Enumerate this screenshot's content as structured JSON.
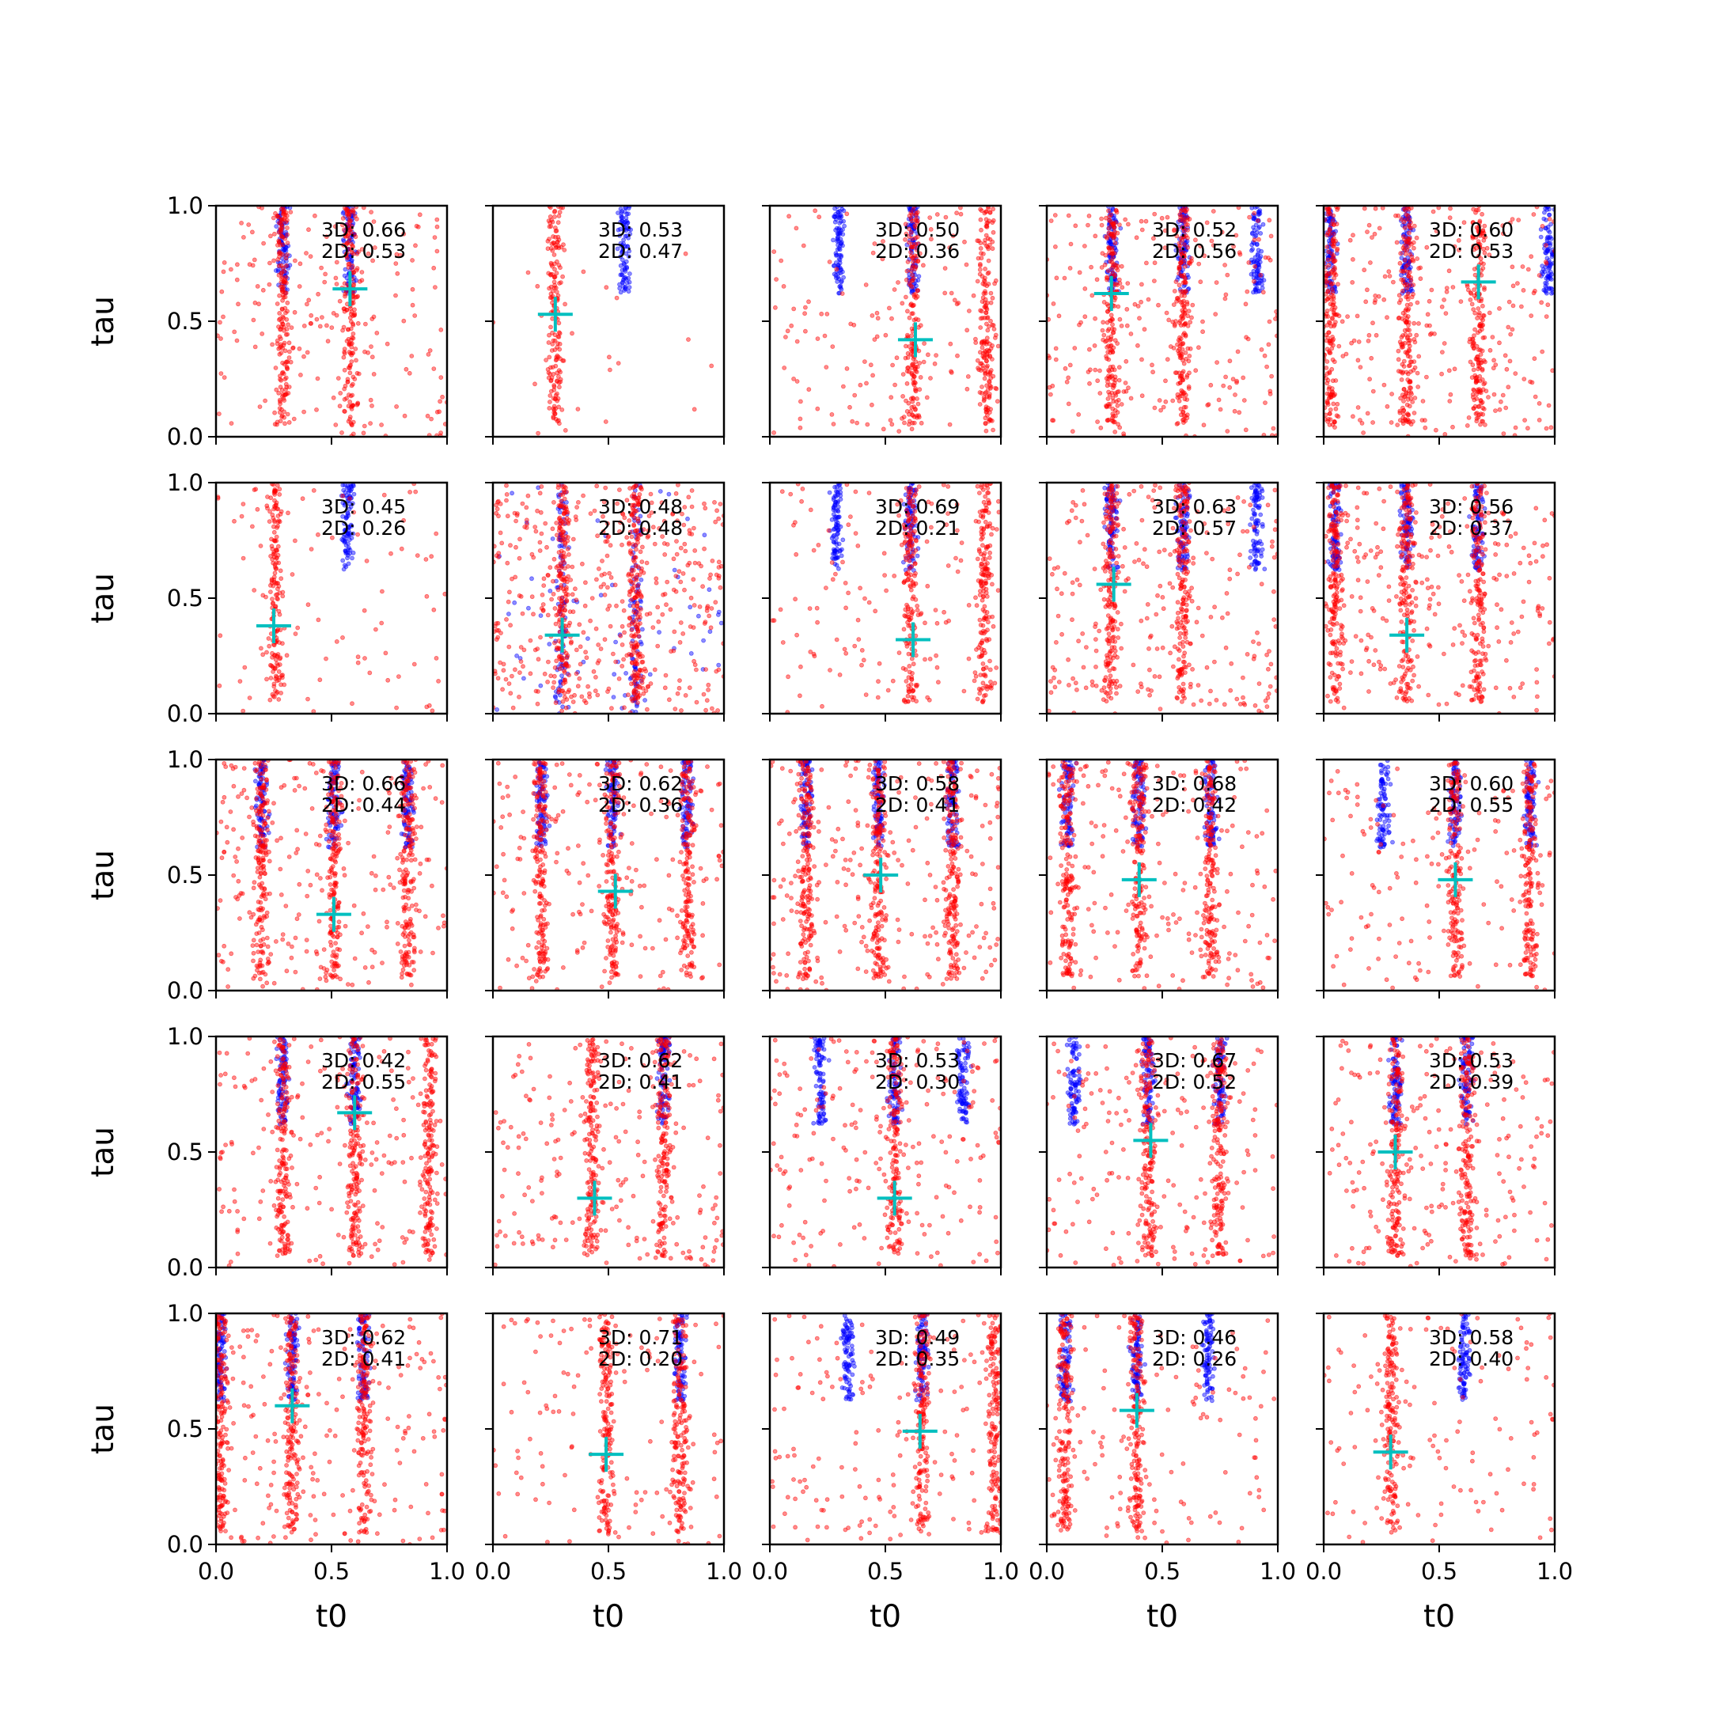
{
  "chart_data": {
    "type": "scatter",
    "layout": "5x5 grid of scatter subplots",
    "xlabel": "t0",
    "ylabel": "tau",
    "xlim": [
      0.0,
      1.0
    ],
    "ylim": [
      0.0,
      1.0
    ],
    "x_ticks": [
      "0.0",
      "0.5",
      "1.0"
    ],
    "y_ticks": [
      "0.0",
      "0.5",
      "1.0"
    ],
    "series": [
      {
        "color": "#ff0000",
        "marker": "small dots, alpha 0.4"
      },
      {
        "color": "#0000ff",
        "marker": "small dots, alpha 0.4"
      },
      {
        "color": "#00bfbf",
        "marker": "+ (large)"
      }
    ],
    "grid": false,
    "legend": "none",
    "panels": [
      {
        "a3d": "3D: 0.66",
        "a2d": "2D: 0.53",
        "red": [
          0.29,
          0.58
        ],
        "blue": [
          0.29,
          0.58
        ],
        "diffuse": 0.45,
        "bluefull": false,
        "mark": [
          0.58,
          0.64
        ]
      },
      {
        "a3d": "3D: 0.53",
        "a2d": "2D: 0.47",
        "red": [
          0.27
        ],
        "blue": [
          0.57
        ],
        "diffuse": 0.05,
        "bluefull": false,
        "mark": [
          0.27,
          0.53
        ]
      },
      {
        "a3d": "3D: 0.50",
        "a2d": "2D: 0.36",
        "red": [
          0.62,
          0.94
        ],
        "blue": [
          0.3,
          0.62
        ],
        "diffuse": 0.35,
        "bluefull": false,
        "mark": [
          0.63,
          0.42
        ]
      },
      {
        "a3d": "3D: 0.52",
        "a2d": "2D: 0.56",
        "red": [
          0.28,
          0.59
        ],
        "blue": [
          0.28,
          0.59,
          0.91
        ],
        "diffuse": 0.6,
        "bluefull": false,
        "mark": [
          0.28,
          0.62
        ]
      },
      {
        "a3d": "3D: 0.60",
        "a2d": "2D: 0.53",
        "red": [
          0.03,
          0.36,
          0.67
        ],
        "blue": [
          0.03,
          0.36,
          0.97
        ],
        "diffuse": 0.6,
        "bluefull": false,
        "mark": [
          0.67,
          0.67
        ]
      },
      {
        "a3d": "3D: 0.45",
        "a2d": "2D: 0.26",
        "red": [
          0.26
        ],
        "blue": [
          0.57
        ],
        "diffuse": 0.2,
        "bluefull": false,
        "mark": [
          0.25,
          0.38
        ]
      },
      {
        "a3d": "3D: 0.48",
        "a2d": "2D: 0.48",
        "red": [
          0.3,
          0.62
        ],
        "blue": [
          0.3,
          0.62
        ],
        "diffuse": 1.0,
        "bluefull": true,
        "mark": [
          0.3,
          0.34
        ]
      },
      {
        "a3d": "3D: 0.69",
        "a2d": "2D: 0.21",
        "red": [
          0.61,
          0.93
        ],
        "blue": [
          0.29,
          0.61
        ],
        "diffuse": 0.3,
        "bluefull": false,
        "mark": [
          0.62,
          0.32
        ]
      },
      {
        "a3d": "3D: 0.63",
        "a2d": "2D: 0.57",
        "red": [
          0.28,
          0.59
        ],
        "blue": [
          0.28,
          0.59,
          0.91
        ],
        "diffuse": 0.55,
        "bluefull": false,
        "mark": [
          0.29,
          0.56
        ]
      },
      {
        "a3d": "3D: 0.56",
        "a2d": "2D: 0.37",
        "red": [
          0.05,
          0.36,
          0.67
        ],
        "blue": [
          0.05,
          0.36,
          0.67
        ],
        "diffuse": 0.55,
        "bluefull": false,
        "mark": [
          0.36,
          0.34
        ]
      },
      {
        "a3d": "3D: 0.66",
        "a2d": "2D: 0.44",
        "red": [
          0.2,
          0.51,
          0.83
        ],
        "blue": [
          0.2,
          0.51,
          0.83
        ],
        "diffuse": 0.55,
        "bluefull": false,
        "mark": [
          0.51,
          0.33
        ]
      },
      {
        "a3d": "3D: 0.62",
        "a2d": "2D: 0.36",
        "red": [
          0.21,
          0.52,
          0.84
        ],
        "blue": [
          0.21,
          0.52,
          0.84
        ],
        "diffuse": 0.45,
        "bluefull": false,
        "mark": [
          0.53,
          0.43
        ]
      },
      {
        "a3d": "3D: 0.58",
        "a2d": "2D: 0.41",
        "red": [
          0.16,
          0.47,
          0.79
        ],
        "blue": [
          0.16,
          0.47,
          0.79
        ],
        "diffuse": 0.6,
        "bluefull": false,
        "mark": [
          0.48,
          0.5
        ]
      },
      {
        "a3d": "3D: 0.68",
        "a2d": "2D: 0.42",
        "red": [
          0.09,
          0.4,
          0.71
        ],
        "blue": [
          0.09,
          0.4,
          0.71
        ],
        "diffuse": 0.45,
        "bluefull": false,
        "mark": [
          0.4,
          0.48
        ]
      },
      {
        "a3d": "3D: 0.60",
        "a2d": "2D: 0.55",
        "red": [
          0.57,
          0.89
        ],
        "blue": [
          0.26,
          0.57,
          0.89
        ],
        "diffuse": 0.35,
        "bluefull": false,
        "mark": [
          0.57,
          0.48
        ]
      },
      {
        "a3d": "3D: 0.42",
        "a2d": "2D: 0.55",
        "red": [
          0.29,
          0.6,
          0.92
        ],
        "blue": [
          0.29,
          0.6
        ],
        "diffuse": 0.45,
        "bluefull": false,
        "mark": [
          0.6,
          0.67
        ]
      },
      {
        "a3d": "3D: 0.62",
        "a2d": "2D: 0.41",
        "red": [
          0.43,
          0.74
        ],
        "blue": [
          0.74
        ],
        "diffuse": 0.5,
        "bluefull": false,
        "mark": [
          0.44,
          0.3
        ]
      },
      {
        "a3d": "3D: 0.53",
        "a2d": "2D: 0.30",
        "red": [
          0.54
        ],
        "blue": [
          0.22,
          0.54,
          0.84
        ],
        "diffuse": 0.5,
        "bluefull": false,
        "mark": [
          0.54,
          0.3
        ]
      },
      {
        "a3d": "3D: 0.67",
        "a2d": "2D: 0.52",
        "red": [
          0.44,
          0.75
        ],
        "blue": [
          0.12,
          0.44,
          0.75
        ],
        "diffuse": 0.45,
        "bluefull": false,
        "mark": [
          0.45,
          0.55
        ]
      },
      {
        "a3d": "3D: 0.53",
        "a2d": "2D: 0.39",
        "red": [
          0.31,
          0.62
        ],
        "blue": [
          0.31,
          0.62
        ],
        "diffuse": 0.5,
        "bluefull": false,
        "mark": [
          0.31,
          0.5
        ]
      },
      {
        "a3d": "3D: 0.62",
        "a2d": "2D: 0.41",
        "red": [
          0.02,
          0.33,
          0.64
        ],
        "blue": [
          0.02,
          0.33,
          0.64
        ],
        "diffuse": 0.5,
        "bluefull": false,
        "mark": [
          0.33,
          0.6
        ]
      },
      {
        "a3d": "3D: 0.71",
        "a2d": "2D: 0.20",
        "red": [
          0.49,
          0.81
        ],
        "blue": [
          0.81
        ],
        "diffuse": 0.3,
        "bluefull": false,
        "mark": [
          0.49,
          0.39
        ]
      },
      {
        "a3d": "3D: 0.49",
        "a2d": "2D: 0.35",
        "red": [
          0.66,
          0.97
        ],
        "blue": [
          0.34,
          0.66
        ],
        "diffuse": 0.35,
        "bluefull": false,
        "mark": [
          0.65,
          0.49
        ]
      },
      {
        "a3d": "3D: 0.46",
        "a2d": "2D: 0.26",
        "red": [
          0.08,
          0.39
        ],
        "blue": [
          0.08,
          0.39,
          0.7
        ],
        "diffuse": 0.3,
        "bluefull": false,
        "mark": [
          0.39,
          0.58
        ]
      },
      {
        "a3d": "3D: 0.58",
        "a2d": "2D: 0.40",
        "red": [
          0.29
        ],
        "blue": [
          0.61
        ],
        "diffuse": 0.3,
        "bluefull": false,
        "mark": [
          0.29,
          0.4
        ]
      }
    ]
  }
}
